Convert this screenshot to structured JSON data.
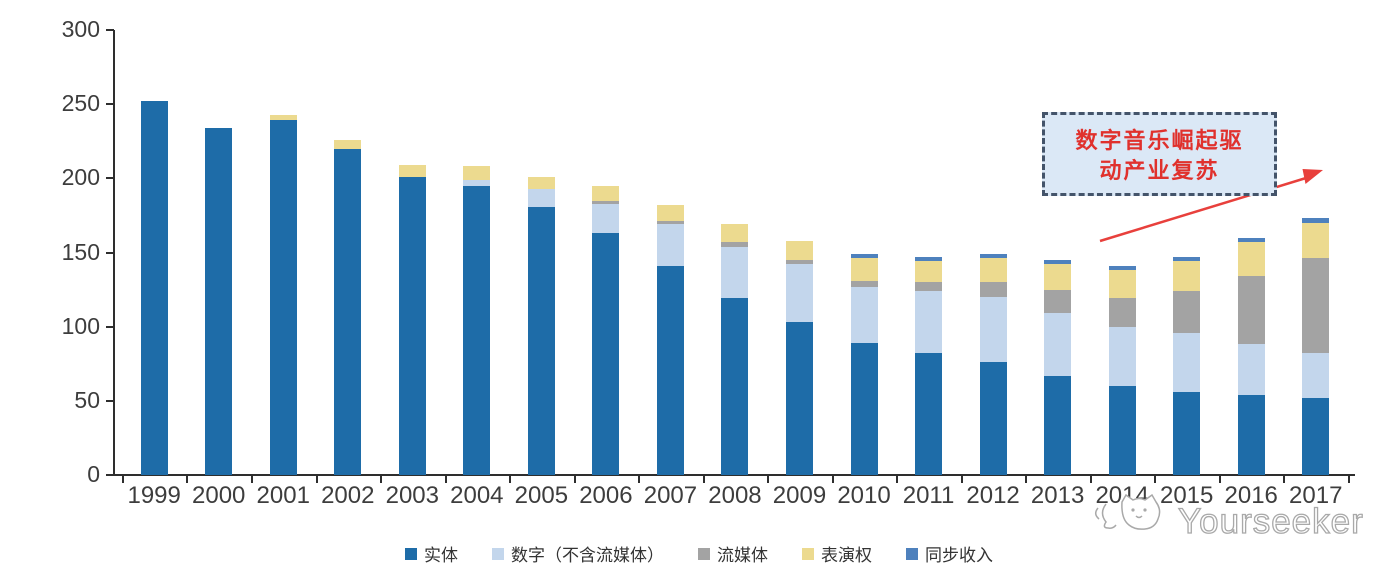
{
  "chart_data": {
    "type": "bar",
    "stacked": true,
    "title": "",
    "xlabel": "",
    "ylabel": "",
    "ylim": [
      0,
      300
    ],
    "yticks": [
      0,
      50,
      100,
      150,
      200,
      250,
      300
    ],
    "grid": false,
    "legend_position": "bottom",
    "categories": [
      "1999",
      "2000",
      "2001",
      "2002",
      "2003",
      "2004",
      "2005",
      "2006",
      "2007",
      "2008",
      "2009",
      "2010",
      "2011",
      "2012",
      "2013",
      "2014",
      "2015",
      "2016",
      "2017"
    ],
    "series": [
      {
        "name": "实体",
        "color": "#1E6CA8",
        "values": [
          252,
          234,
          239,
          220,
          201,
          195,
          181,
          163,
          141,
          119,
          103,
          89,
          82,
          76,
          67,
          60,
          56,
          54,
          52
        ]
      },
      {
        "name": "数字（不含流媒体）",
        "color": "#C3D6EC",
        "values": [
          0,
          0,
          0,
          0,
          0,
          4,
          12,
          20,
          28,
          35,
          39,
          38,
          42,
          44,
          42,
          40,
          40,
          34,
          30
        ]
      },
      {
        "name": "流媒体",
        "color": "#A3A3A3",
        "values": [
          0,
          0,
          0,
          0,
          0,
          0,
          0,
          2,
          2,
          3,
          3,
          4,
          6,
          10,
          16,
          19,
          28,
          46,
          64
        ]
      },
      {
        "name": "表演权",
        "color": "#ECDA8F",
        "values": [
          0,
          0,
          4,
          6,
          8,
          9,
          8,
          10,
          11,
          12,
          13,
          15,
          14,
          16,
          17,
          19,
          20,
          23,
          24
        ]
      },
      {
        "name": "同步收入",
        "color": "#4E81BD",
        "values": [
          0,
          0,
          0,
          0,
          0,
          0,
          0,
          0,
          0,
          0,
          0,
          3,
          3,
          3,
          3,
          3,
          3,
          3,
          3
        ]
      }
    ]
  },
  "annotation": {
    "line1": "数字音乐崛起驱",
    "line2": "动产业复苏",
    "text_color": "#E0312D",
    "border_color": "#44546A",
    "fill_color": "#DBE8F6",
    "arrow_color": "#E8403C"
  },
  "watermark": {
    "text": "Yourseeker",
    "logo": "cat-face-logo",
    "color": "#A9A9A9"
  }
}
